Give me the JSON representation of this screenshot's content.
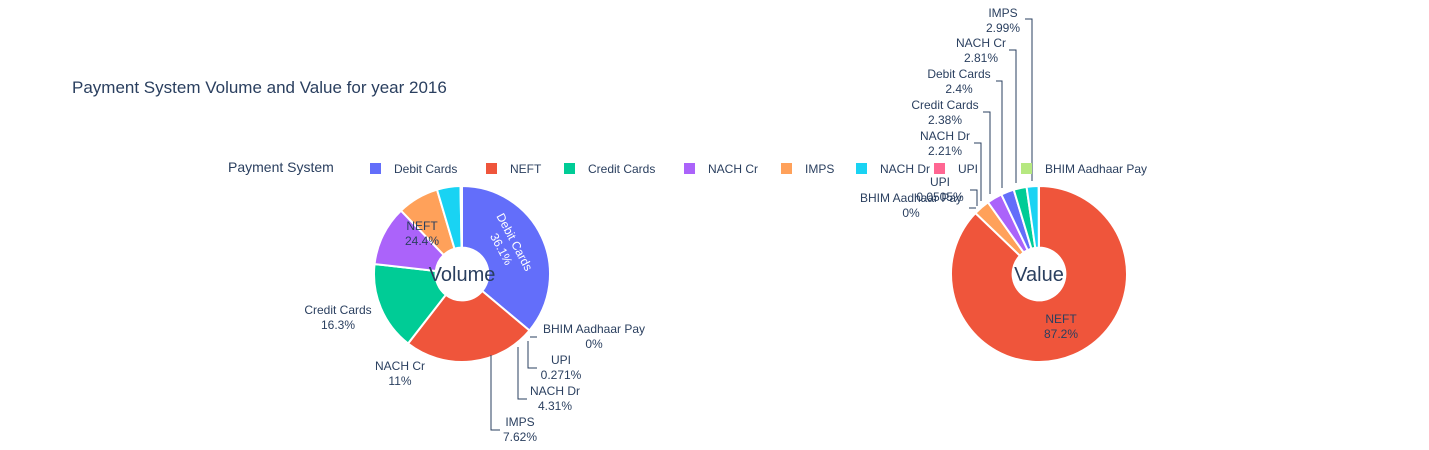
{
  "colors": {
    "Debit Cards": "#636efa",
    "NEFT": "#EF553B",
    "Credit Cards": "#00cc96",
    "NACH Cr": "#ab63fa",
    "IMPS": "#FFA15A",
    "NACH Dr": "#19d3f3",
    "UPI": "#FF6692",
    "BHIM Aadhaar Pay": "#B6E880",
    "text": "#2a3f5f",
    "background": "#ffffff"
  },
  "chart_data": {
    "type": "pie",
    "title": "Payment System Volume and Value for year 2016",
    "legend": {
      "title": "Payment System",
      "placement": "top",
      "orientation": "horizontal",
      "items": [
        "Debit Cards",
        "NEFT",
        "Credit Cards",
        "NACH Cr",
        "IMPS",
        "NACH Dr",
        "UPI",
        "BHIM Aadhaar Pay"
      ]
    },
    "subplots": [
      {
        "name": "Volume",
        "hole": 0.3,
        "slices": [
          {
            "label": "Debit Cards",
            "percent": 36.1,
            "percent_text": "36.1%"
          },
          {
            "label": "NEFT",
            "percent": 24.4,
            "percent_text": "24.4%"
          },
          {
            "label": "Credit Cards",
            "percent": 16.3,
            "percent_text": "16.3%"
          },
          {
            "label": "NACH Cr",
            "percent": 11.0,
            "percent_text": "11%"
          },
          {
            "label": "IMPS",
            "percent": 7.62,
            "percent_text": "7.62%"
          },
          {
            "label": "NACH Dr",
            "percent": 4.31,
            "percent_text": "4.31%"
          },
          {
            "label": "UPI",
            "percent": 0.271,
            "percent_text": "0.271%"
          },
          {
            "label": "BHIM Aadhaar Pay",
            "percent": 0,
            "percent_text": "0%"
          }
        ]
      },
      {
        "name": "Value",
        "hole": 0.3,
        "slices": [
          {
            "label": "NEFT",
            "percent": 87.2,
            "percent_text": "87.2%"
          },
          {
            "label": "IMPS",
            "percent": 2.99,
            "percent_text": "2.99%"
          },
          {
            "label": "NACH Cr",
            "percent": 2.81,
            "percent_text": "2.81%"
          },
          {
            "label": "Debit Cards",
            "percent": 2.4,
            "percent_text": "2.4%"
          },
          {
            "label": "Credit Cards",
            "percent": 2.38,
            "percent_text": "2.38%"
          },
          {
            "label": "NACH Dr",
            "percent": 2.21,
            "percent_text": "2.21%"
          },
          {
            "label": "UPI",
            "percent": 0.0505,
            "percent_text": "0.0505%"
          },
          {
            "label": "BHIM Aadhaar Pay",
            "percent": 0,
            "percent_text": "0%"
          }
        ]
      }
    ]
  }
}
